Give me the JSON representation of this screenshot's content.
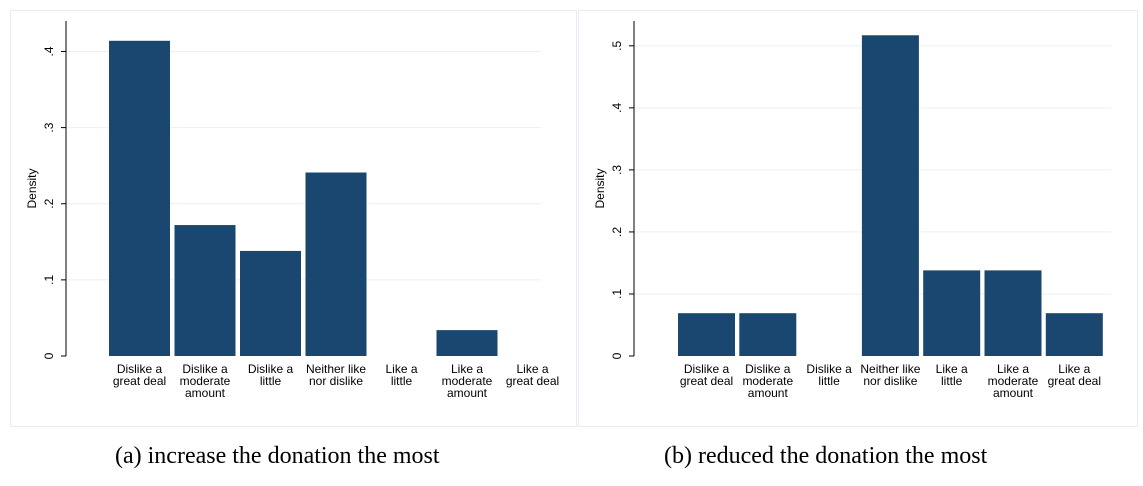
{
  "chart_data": [
    {
      "type": "bar",
      "ylabel": "Density",
      "ylim": [
        0,
        0.44
      ],
      "yticks": [
        {
          "value": 0,
          "label": "0"
        },
        {
          "value": 0.1,
          "label": ".1"
        },
        {
          "value": 0.2,
          "label": ".2"
        },
        {
          "value": 0.3,
          "label": ".3"
        },
        {
          "value": 0.4,
          "label": ".4"
        }
      ],
      "categories": [
        [
          "Dislike a",
          "great deal"
        ],
        [
          "Dislike a",
          "moderate",
          "amount"
        ],
        [
          "Dislike a",
          "little"
        ],
        [
          "Neither like",
          "nor dislike"
        ],
        [
          "Like a",
          "little"
        ],
        [
          "Like a",
          "moderate",
          "amount"
        ],
        [
          "Like a",
          "great deal"
        ]
      ],
      "values": [
        0.414,
        0.172,
        0.138,
        0.241,
        0,
        0.034,
        0
      ],
      "grid": true,
      "bar_color": "#1a476f",
      "caption": "(a) increase the donation the most"
    },
    {
      "type": "bar",
      "ylabel": "Density",
      "ylim": [
        0,
        0.54
      ],
      "yticks": [
        {
          "value": 0,
          "label": "0"
        },
        {
          "value": 0.1,
          "label": ".1"
        },
        {
          "value": 0.2,
          "label": ".2"
        },
        {
          "value": 0.3,
          "label": ".3"
        },
        {
          "value": 0.4,
          "label": ".4"
        },
        {
          "value": 0.5,
          "label": ".5"
        }
      ],
      "categories": [
        [
          "Dislike a",
          "great deal"
        ],
        [
          "Dislike a",
          "moderate",
          "amount"
        ],
        [
          "Dislike a",
          "little"
        ],
        [
          "Neither like",
          "nor dislike"
        ],
        [
          "Like a",
          "little"
        ],
        [
          "Like a",
          "moderate",
          "amount"
        ],
        [
          "Like a",
          "great deal"
        ]
      ],
      "values": [
        0.069,
        0.069,
        0,
        0.517,
        0.138,
        0.138,
        0.069
      ],
      "grid": true,
      "bar_color": "#1a476f",
      "caption": "(b) reduced the donation the most"
    }
  ]
}
